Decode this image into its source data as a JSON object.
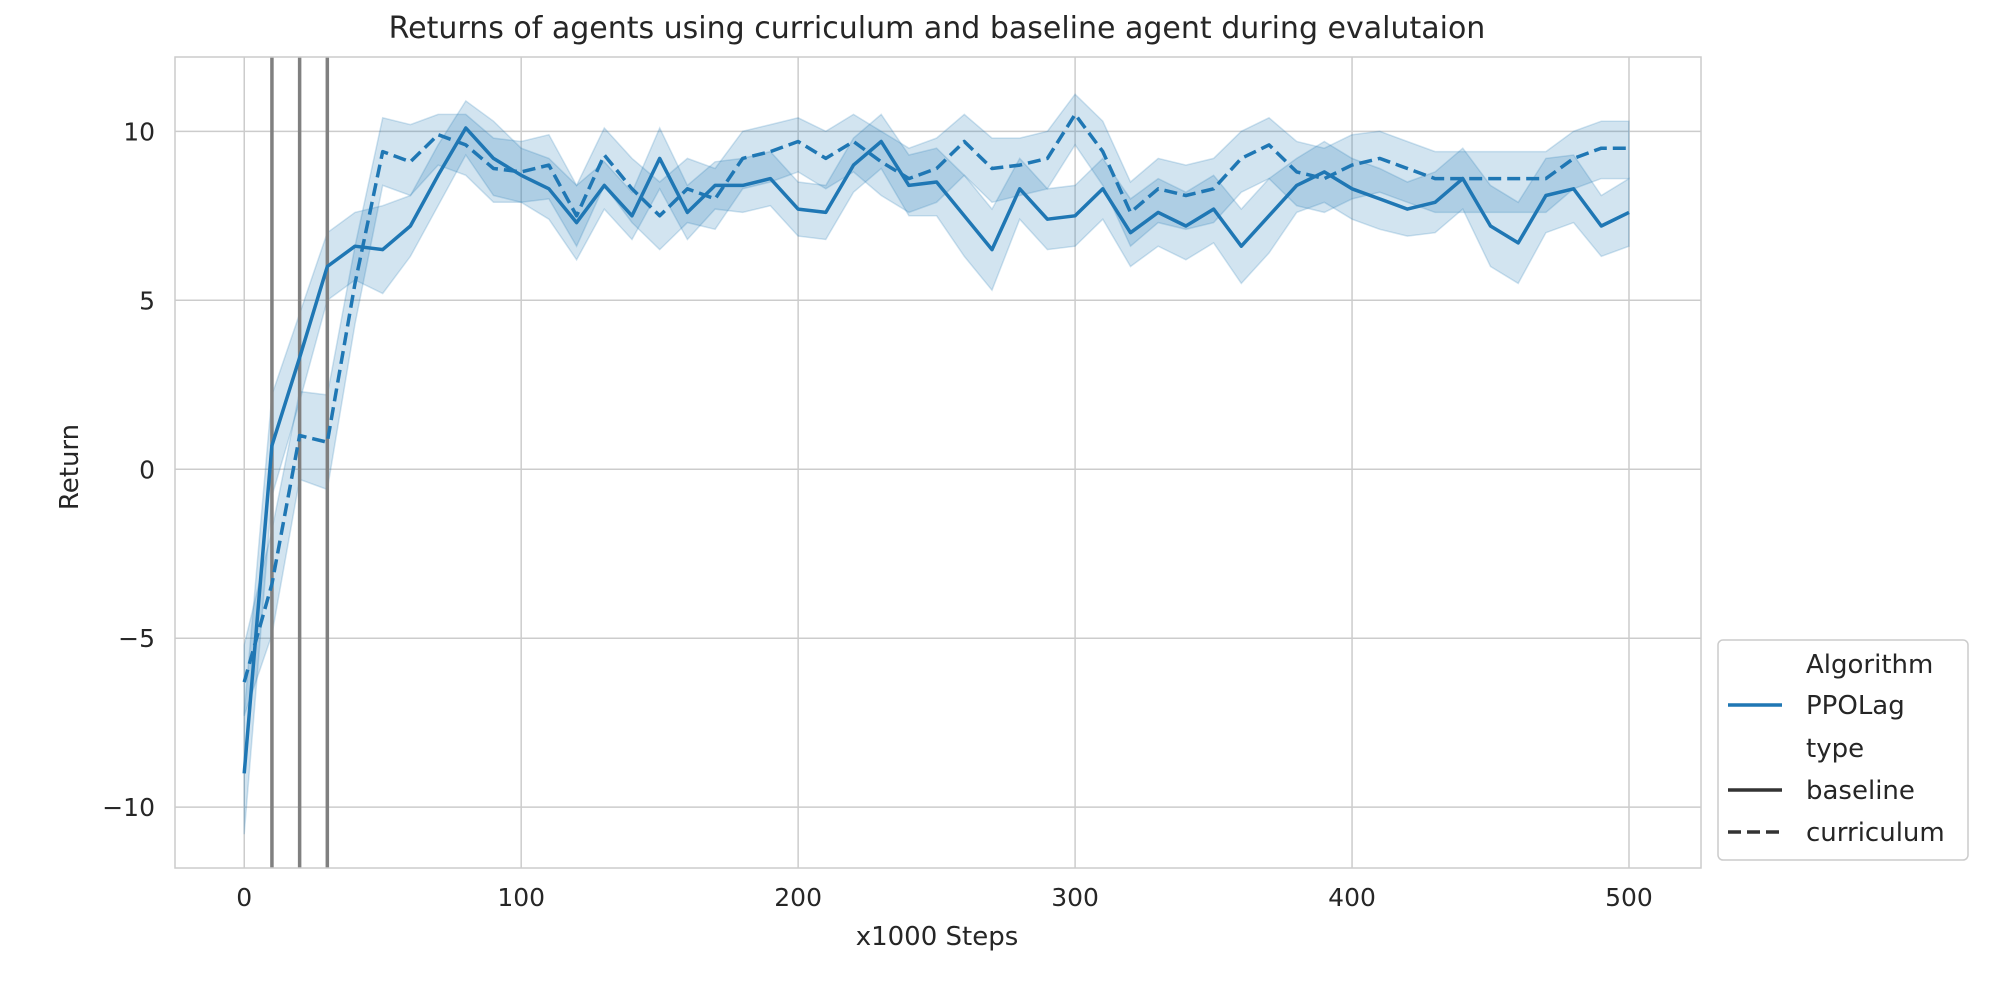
{
  "chart_data": {
    "type": "line",
    "title": "Returns of agents using curriculum and baseline agent during evalutaion",
    "xlabel": "x1000 Steps",
    "ylabel": "Return",
    "xlim": [
      -25,
      526
    ],
    "ylim": [
      -11.8,
      12.2
    ],
    "xticks": [
      0,
      100,
      200,
      300,
      400,
      500
    ],
    "yticks": [
      -10,
      -5,
      0,
      5,
      10
    ],
    "xtick_labels": [
      "0",
      "100",
      "200",
      "300",
      "400",
      "500"
    ],
    "ytick_labels": [
      "−10",
      "−5",
      "0",
      "5",
      "10"
    ],
    "grid": true,
    "legend_position": "lower-right outside",
    "colors": {
      "series": "#1f77b4",
      "band": "#1f77b4",
      "vlines": "#808080",
      "grid": "#cccccc",
      "legend_line": "#333333"
    },
    "legend": {
      "hue_title": "Algorithm",
      "hue_entries": [
        "PPOLag"
      ],
      "style_title": "type",
      "style_entries": [
        "baseline",
        "curriculum"
      ]
    },
    "vertical_lines_x": [
      10,
      20,
      30
    ],
    "x": [
      0,
      10,
      20,
      30,
      40,
      50,
      60,
      70,
      80,
      90,
      100,
      110,
      120,
      130,
      140,
      150,
      160,
      170,
      180,
      190,
      200,
      210,
      220,
      230,
      240,
      250,
      260,
      270,
      280,
      290,
      300,
      310,
      320,
      330,
      340,
      350,
      360,
      370,
      380,
      390,
      400,
      410,
      420,
      430,
      440,
      450,
      460,
      470,
      480,
      490,
      500
    ],
    "series": [
      {
        "name": "baseline",
        "hue": "PPOLag",
        "style": "solid",
        "values": [
          -9.0,
          0.7,
          3.3,
          6.0,
          6.6,
          6.5,
          7.2,
          8.7,
          10.1,
          9.2,
          8.7,
          8.3,
          7.3,
          8.4,
          7.5,
          9.2,
          7.6,
          8.4,
          8.4,
          8.6,
          7.7,
          7.6,
          9.0,
          9.7,
          8.4,
          8.5,
          7.5,
          6.5,
          8.3,
          7.4,
          7.5,
          8.3,
          7.0,
          7.6,
          7.2,
          7.7,
          6.6,
          7.5,
          8.4,
          8.8,
          8.3,
          8.0,
          7.7,
          7.9,
          8.6,
          7.2,
          6.7,
          8.1,
          8.3,
          7.2,
          7.6
        ],
        "lower": [
          -10.8,
          -0.8,
          2.0,
          5.0,
          5.6,
          5.2,
          6.3,
          7.8,
          9.3,
          8.1,
          7.9,
          7.4,
          6.2,
          7.7,
          6.8,
          8.3,
          6.8,
          7.7,
          7.6,
          7.8,
          6.9,
          6.8,
          8.2,
          8.9,
          7.5,
          7.5,
          6.3,
          5.3,
          7.4,
          6.5,
          6.6,
          7.4,
          6.0,
          6.6,
          6.2,
          6.7,
          5.5,
          6.4,
          7.6,
          7.9,
          7.4,
          7.1,
          6.9,
          7.0,
          7.7,
          6.0,
          5.5,
          7.0,
          7.3,
          6.3,
          6.6
        ],
        "upper": [
          -7.2,
          2.2,
          4.6,
          7.0,
          7.6,
          7.8,
          8.1,
          9.6,
          10.9,
          10.3,
          9.5,
          9.2,
          8.4,
          9.1,
          8.2,
          10.1,
          8.4,
          9.1,
          9.2,
          9.4,
          8.5,
          8.4,
          9.8,
          10.5,
          9.3,
          9.5,
          8.7,
          7.7,
          9.2,
          8.3,
          8.4,
          9.2,
          8.0,
          8.6,
          8.2,
          8.7,
          7.7,
          8.6,
          9.2,
          9.7,
          9.2,
          8.9,
          8.5,
          8.8,
          9.5,
          8.4,
          7.9,
          9.2,
          9.3,
          8.1,
          8.6
        ]
      },
      {
        "name": "curriculum",
        "hue": "PPOLag",
        "style": "dashed",
        "values": [
          -6.3,
          -3.4,
          1.0,
          0.8,
          5.5,
          9.4,
          9.1,
          9.9,
          9.6,
          8.9,
          8.8,
          9.0,
          7.5,
          9.3,
          8.3,
          7.5,
          8.3,
          8.0,
          9.2,
          9.4,
          9.7,
          9.2,
          9.7,
          9.1,
          8.6,
          8.9,
          9.7,
          8.9,
          9.0,
          9.2,
          10.5,
          9.4,
          7.6,
          8.3,
          8.1,
          8.3,
          9.2,
          9.6,
          8.8,
          8.6,
          9.0,
          9.2,
          8.9,
          8.6,
          8.6,
          8.6,
          8.6,
          8.6,
          9.2,
          9.5,
          9.5
        ],
        "lower": [
          -7.3,
          -4.9,
          -0.3,
          -0.6,
          4.3,
          8.4,
          8.1,
          9.0,
          8.7,
          7.9,
          7.9,
          8.0,
          6.6,
          8.4,
          7.3,
          6.5,
          7.3,
          7.1,
          8.3,
          8.5,
          8.8,
          8.3,
          8.8,
          8.1,
          7.6,
          7.9,
          8.7,
          7.9,
          8.1,
          8.3,
          9.6,
          8.4,
          6.6,
          7.3,
          7.1,
          7.3,
          8.2,
          8.6,
          7.8,
          7.6,
          8.0,
          8.2,
          7.9,
          7.6,
          7.6,
          7.6,
          7.6,
          7.6,
          8.3,
          8.6,
          8.6
        ],
        "upper": [
          -5.2,
          -1.8,
          2.3,
          2.2,
          6.6,
          10.4,
          10.2,
          10.5,
          10.5,
          9.8,
          9.7,
          9.9,
          8.4,
          10.1,
          9.2,
          8.5,
          9.2,
          8.9,
          10.0,
          10.2,
          10.4,
          10.0,
          10.5,
          10.0,
          9.5,
          9.8,
          10.5,
          9.8,
          9.8,
          10.0,
          11.1,
          10.3,
          8.5,
          9.2,
          9.0,
          9.2,
          10.0,
          10.4,
          9.7,
          9.5,
          9.9,
          10.0,
          9.7,
          9.4,
          9.4,
          9.4,
          9.4,
          9.4,
          10.0,
          10.3,
          10.3
        ]
      }
    ]
  }
}
